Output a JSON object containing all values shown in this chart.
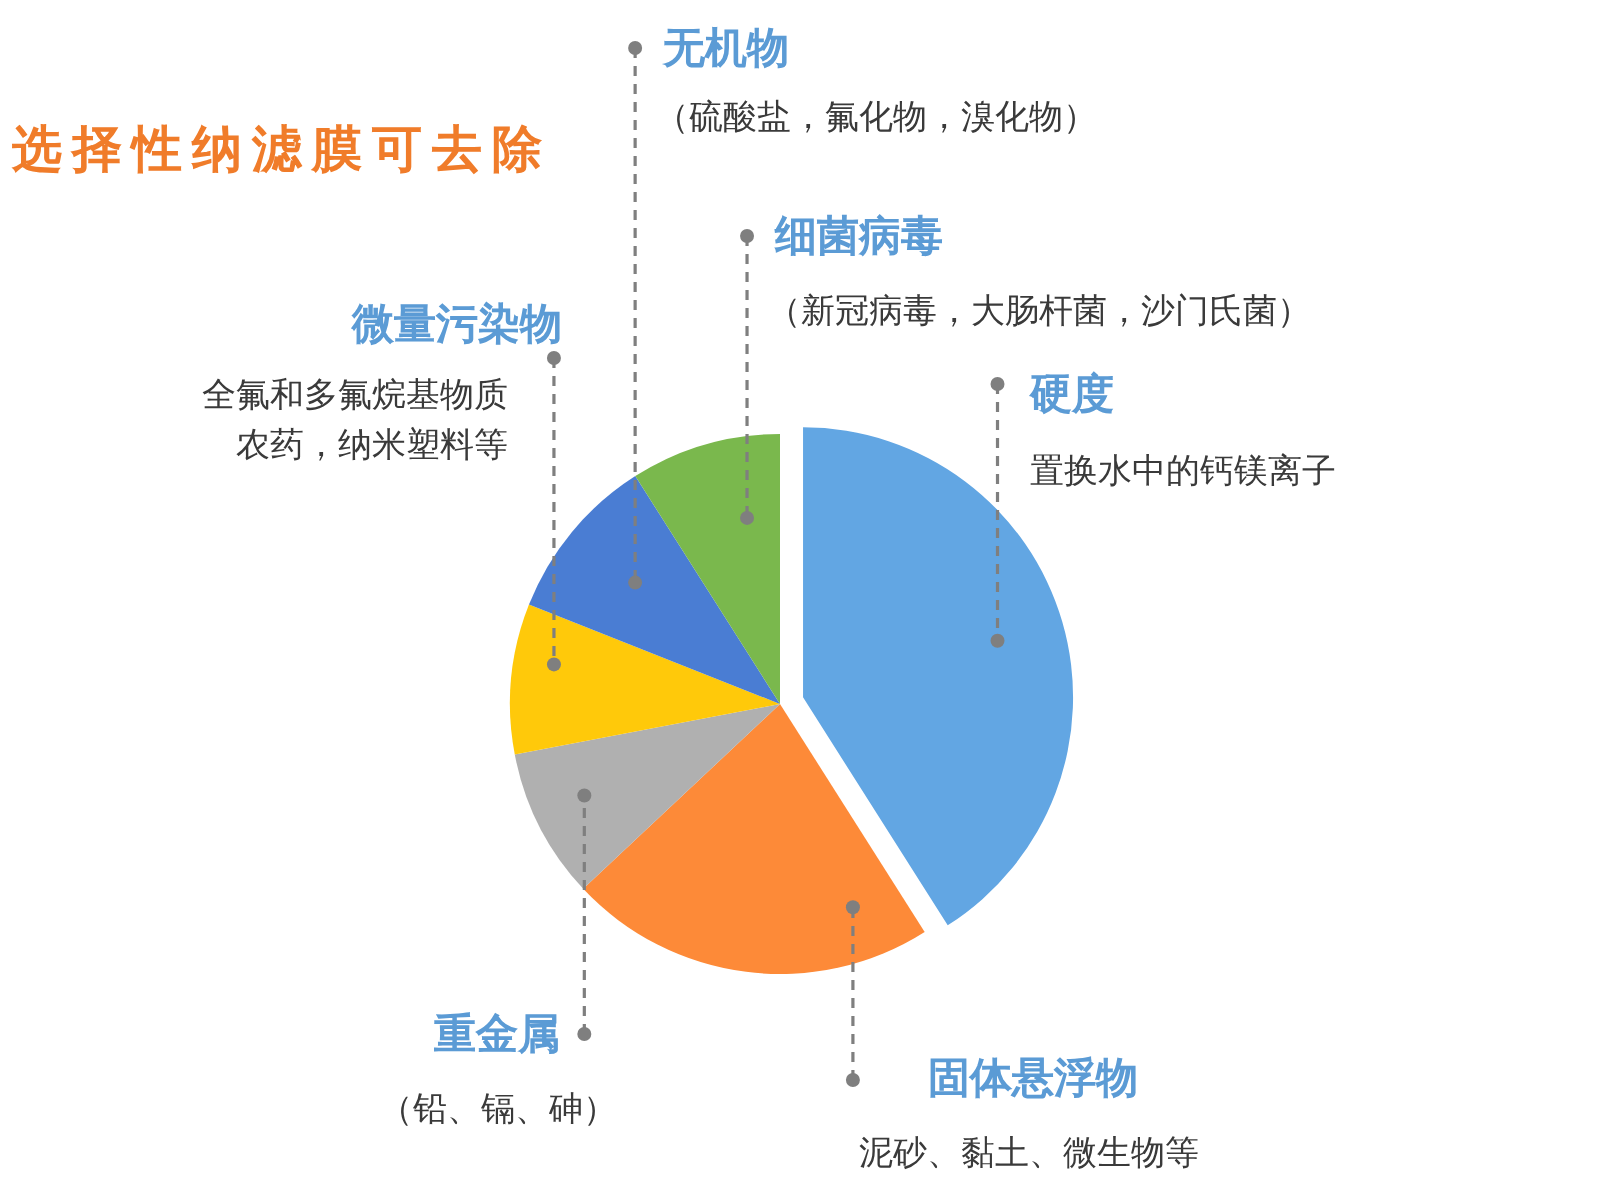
{
  "chart_data": {
    "type": "pie",
    "title": "选择性纳滤膜可去除",
    "categories": [
      "硬度",
      "固体悬浮物",
      "重金属",
      "微量污染物",
      "无机物",
      "细菌病毒"
    ],
    "values": [
      41,
      22,
      9,
      9,
      10,
      9
    ],
    "colors": [
      "#62a6e3",
      "#fd8a38",
      "#b0b0b0",
      "#ffc90a",
      "#4a7dd3",
      "#7ab84d"
    ],
    "annotations": [
      "置换水中的钙镁离子",
      "泥砂、黏土、微生物等",
      "（铅、镉、砷）",
      "全氟和多氟烷基物质",
      "农药，纳米塑料等",
      "（硫酸盐，氟化物，溴化物）",
      "（新冠病毒，大肠杆菌，沙门氏菌）"
    ]
  }
}
